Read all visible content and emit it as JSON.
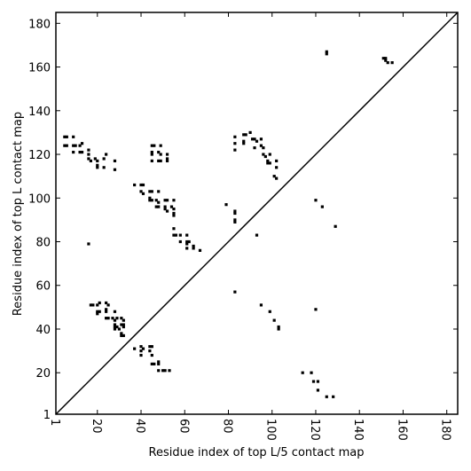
{
  "chart_data": {
    "type": "scatter",
    "x_label": "Residue index of top L/5 contact map",
    "y_label": "Residue index of top L contact map",
    "xlim": [
      1,
      185
    ],
    "ylim": [
      1,
      185
    ],
    "xticks": [
      1,
      20,
      40,
      60,
      80,
      100,
      120,
      140,
      160,
      180
    ],
    "yticks": [
      1,
      20,
      40,
      60,
      80,
      100,
      120,
      140,
      160,
      180
    ],
    "color": "#000000",
    "marker": "square",
    "x": [
      5,
      6,
      9,
      5,
      6,
      9,
      10,
      12,
      13,
      9,
      12,
      13,
      16,
      16,
      16,
      17,
      19,
      20,
      20,
      20,
      23,
      24,
      23,
      28,
      28,
      37,
      40,
      41,
      40,
      41,
      44,
      45,
      48,
      44,
      44,
      45,
      47,
      48,
      47,
      48,
      51,
      52,
      51,
      51,
      52,
      54,
      55,
      55,
      55,
      55,
      45,
      46,
      49,
      45,
      45,
      48,
      49,
      52,
      45,
      48,
      49,
      52,
      52,
      55,
      55,
      56,
      58,
      61,
      58,
      61,
      62,
      61,
      61,
      64,
      64,
      67,
      16,
      79,
      93,
      83,
      83,
      83,
      87,
      88,
      90,
      87,
      87,
      91,
      92,
      93,
      95,
      92,
      95,
      96,
      96,
      97,
      99,
      98,
      98,
      99,
      102,
      102,
      101,
      102,
      83,
      83,
      83,
      83,
      151,
      152,
      152,
      153,
      155,
      125,
      125,
      120,
      123,
      129,
      17,
      18,
      20,
      21,
      20,
      21,
      20,
      24,
      25,
      24,
      24,
      24,
      25,
      28,
      27,
      29,
      28,
      28,
      28,
      29,
      28,
      31,
      32,
      31,
      32,
      32,
      30,
      31,
      32,
      31,
      37,
      40,
      41,
      40,
      44,
      45,
      44,
      45,
      40,
      45,
      46,
      48,
      48,
      48,
      50,
      51,
      53,
      83,
      95,
      99,
      101,
      103,
      103,
      120,
      114,
      118,
      119,
      121,
      121,
      125,
      128
    ],
    "y": [
      128,
      128,
      128,
      124,
      124,
      124,
      124,
      124,
      125,
      121,
      121,
      121,
      122,
      120,
      118,
      117,
      118,
      117,
      115,
      114,
      118,
      120,
      114,
      117,
      113,
      106,
      106,
      106,
      103,
      102,
      103,
      103,
      103,
      100,
      99,
      99,
      99,
      98,
      96,
      96,
      99,
      99,
      96,
      95,
      94,
      96,
      95,
      99,
      93,
      92,
      124,
      124,
      124,
      121,
      120,
      121,
      120,
      120,
      117,
      117,
      117,
      118,
      117,
      86,
      83,
      83,
      83,
      83,
      80,
      80,
      80,
      79,
      77,
      78,
      77,
      76,
      79,
      97,
      83,
      128,
      125,
      122,
      129,
      129,
      130,
      126,
      125,
      127,
      127,
      126,
      127,
      123,
      124,
      123,
      120,
      119,
      120,
      117,
      116,
      116,
      117,
      114,
      110,
      109,
      94,
      93,
      90,
      89,
      164,
      164,
      163,
      162,
      162,
      167,
      166,
      99,
      96,
      87,
      51,
      51,
      51,
      52,
      48,
      48,
      47,
      52,
      51,
      49,
      48,
      45,
      45,
      48,
      45,
      45,
      44,
      42,
      41,
      41,
      40,
      45,
      44,
      42,
      42,
      41,
      40,
      38,
      37,
      37,
      31,
      32,
      31,
      30,
      32,
      32,
      30,
      28,
      28,
      24,
      24,
      25,
      24,
      21,
      21,
      21,
      21,
      57,
      51,
      48,
      44,
      41,
      40,
      49,
      20,
      20,
      16,
      16,
      12,
      9,
      9
    ]
  }
}
